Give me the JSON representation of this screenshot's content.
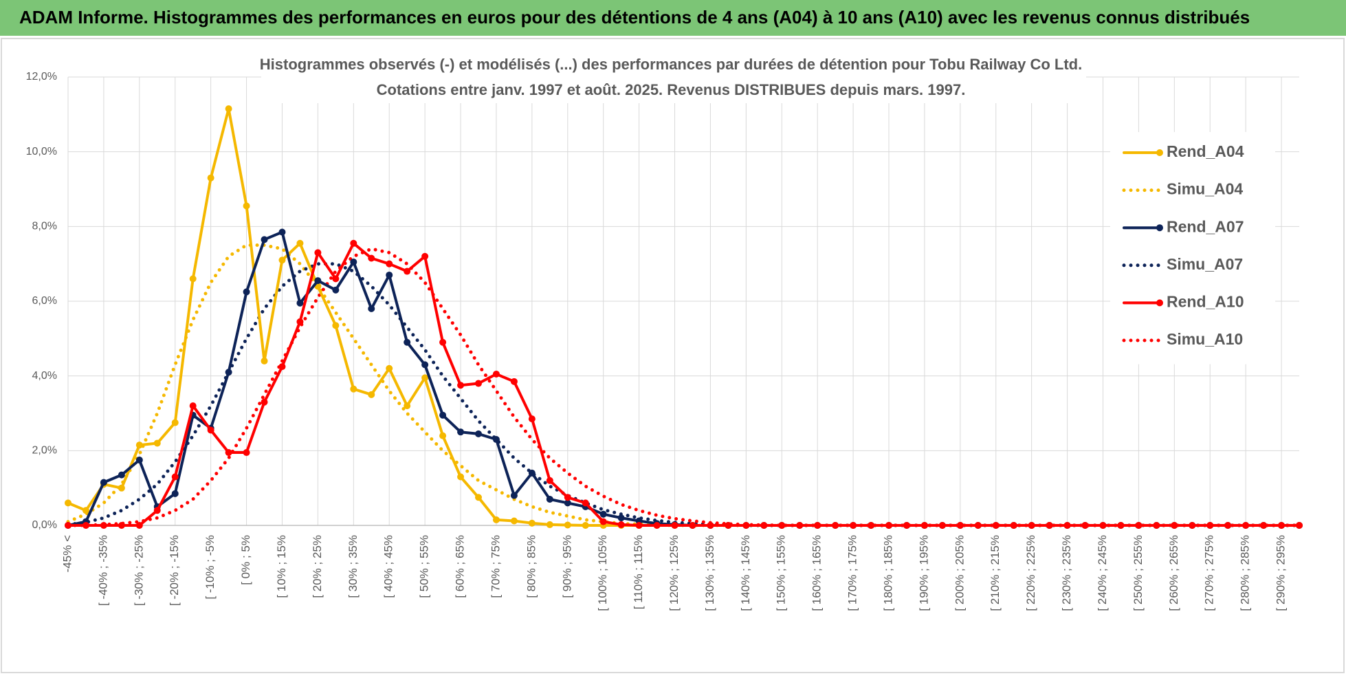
{
  "header": {
    "title": "ADAM Informe. Histogrammes des performances en euros pour des détentions de 4 ans (A04) à 10 ans (A10) avec les revenus connus distribués"
  },
  "chart_data": {
    "type": "line",
    "title": "Histogrammes observés (-) et modélisés (...) des performances par durées de détention pour Tobu Railway Co Ltd.",
    "subtitle": "Cotations entre janv. 1997 et août. 2025. Revenus DISTRIBUES depuis mars. 1997.",
    "categories": [
      "-45% <",
      null,
      "[ -40% ; -35%",
      null,
      "[ -30% ; -25%",
      null,
      "[ -20% ; -15%",
      null,
      "[ -10% ; -5%",
      null,
      "[ 0% ; 5%",
      null,
      "[ 10% ; 15%",
      null,
      "[ 20% ; 25%",
      null,
      "[ 30% ; 35%",
      null,
      "[ 40% ; 45%",
      null,
      "[ 50% ; 55%",
      null,
      "[ 60% ; 65%",
      null,
      "[ 70% ; 75%",
      null,
      "[ 80% ; 85%",
      null,
      "[ 90% ; 95%",
      null,
      "[ 100% ; 105%",
      null,
      "[ 110% ; 115%",
      null,
      "[ 120% ; 125%",
      null,
      "[ 130% ; 135%",
      null,
      "[ 140% ; 145%",
      null,
      "[ 150% ; 155%",
      null,
      "[ 160% ; 165%",
      null,
      "[ 170% ; 175%",
      null,
      "[ 180% ; 185%",
      null,
      "[ 190% ; 195%",
      null,
      "[ 200% ; 205%",
      null,
      "[ 210% ; 215%",
      null,
      "[ 220% ; 225%",
      null,
      "[ 230% ; 235%",
      null,
      "[ 240% ; 245%",
      null,
      "[ 250% ; 255%",
      null,
      "[ 260% ; 265%",
      null,
      "[ 270% ; 275%",
      null,
      "[ 280% ; 285%",
      null,
      "[ 290% ; 295%",
      null
    ],
    "series": [
      {
        "name": "Rend_A04",
        "color": "#f5b800",
        "dash": "solid",
        "markers": true,
        "values": [
          0.6,
          0.4,
          1.1,
          1.0,
          2.15,
          2.2,
          2.75,
          6.6,
          9.3,
          11.15,
          8.55,
          4.4,
          7.1,
          7.55,
          6.4,
          5.35,
          3.65,
          3.5,
          4.2,
          3.2,
          3.95,
          2.4,
          1.3,
          0.75,
          0.15,
          0.12,
          0.06,
          0.02,
          0.01,
          0,
          0,
          0,
          0,
          0,
          0,
          0,
          0,
          0,
          0,
          0,
          0,
          0,
          0,
          0,
          0,
          0,
          0,
          0,
          0,
          0,
          0,
          0,
          0,
          0,
          0,
          0,
          0,
          0,
          0,
          0,
          0,
          0,
          0,
          0,
          0,
          0,
          0,
          0,
          0,
          0
        ]
      },
      {
        "name": "Simu_A04",
        "color": "#f5b800",
        "dash": "dotted",
        "markers": false,
        "values": [
          0.1,
          0.3,
          0.6,
          1.1,
          1.9,
          3.0,
          4.3,
          5.5,
          6.5,
          7.2,
          7.5,
          7.5,
          7.4,
          7.0,
          6.4,
          5.7,
          5.0,
          4.3,
          3.6,
          3.0,
          2.5,
          2.0,
          1.6,
          1.2,
          0.95,
          0.7,
          0.5,
          0.35,
          0.25,
          0.15,
          0.1,
          0.05,
          0.03,
          0.01,
          0,
          0,
          0,
          0,
          0,
          0,
          0,
          0,
          0,
          0,
          0,
          0,
          0,
          0,
          0,
          0,
          0,
          0,
          0,
          0,
          0,
          0,
          0,
          0,
          0,
          0,
          0,
          0,
          0,
          0,
          0,
          0,
          0,
          0,
          0,
          0
        ]
      },
      {
        "name": "Rend_A07",
        "color": "#0d2358",
        "dash": "solid",
        "markers": true,
        "values": [
          0,
          0.1,
          1.15,
          1.35,
          1.75,
          0.5,
          0.85,
          2.95,
          2.6,
          4.1,
          6.25,
          7.65,
          7.85,
          5.95,
          6.55,
          6.3,
          7.05,
          5.8,
          6.7,
          4.9,
          4.3,
          2.95,
          2.5,
          2.45,
          2.3,
          0.8,
          1.4,
          0.7,
          0.6,
          0.5,
          0.3,
          0.2,
          0.12,
          0.05,
          0.02,
          0,
          0,
          0,
          0,
          0,
          0,
          0,
          0,
          0,
          0,
          0,
          0,
          0,
          0,
          0,
          0,
          0,
          0,
          0,
          0,
          0,
          0,
          0,
          0,
          0,
          0,
          0,
          0,
          0,
          0,
          0,
          0,
          0,
          0,
          0
        ]
      },
      {
        "name": "Simu_A07",
        "color": "#0d2358",
        "dash": "dotted",
        "markers": false,
        "values": [
          0.02,
          0.08,
          0.2,
          0.4,
          0.7,
          1.1,
          1.7,
          2.4,
          3.2,
          4.1,
          5.0,
          5.8,
          6.4,
          6.8,
          7.0,
          7.0,
          6.8,
          6.4,
          5.9,
          5.3,
          4.7,
          4.0,
          3.4,
          2.8,
          2.3,
          1.8,
          1.4,
          1.05,
          0.8,
          0.6,
          0.42,
          0.3,
          0.2,
          0.13,
          0.08,
          0.05,
          0.03,
          0.01,
          0,
          0,
          0,
          0,
          0,
          0,
          0,
          0,
          0,
          0,
          0,
          0,
          0,
          0,
          0,
          0,
          0,
          0,
          0,
          0,
          0,
          0,
          0,
          0,
          0,
          0,
          0,
          0,
          0,
          0,
          0,
          0
        ]
      },
      {
        "name": "Rend_A10",
        "color": "#ff0000",
        "dash": "solid",
        "markers": true,
        "values": [
          0,
          0,
          0,
          0,
          0,
          0.4,
          1.3,
          3.2,
          2.55,
          1.95,
          1.95,
          3.3,
          4.25,
          5.45,
          7.3,
          6.6,
          7.55,
          7.15,
          7.0,
          6.8,
          7.2,
          4.9,
          3.75,
          3.8,
          4.05,
          3.85,
          2.85,
          1.2,
          0.75,
          0.6,
          0.1,
          0.02,
          0,
          0,
          0,
          0,
          0,
          0,
          0,
          0,
          0,
          0,
          0,
          0,
          0,
          0,
          0,
          0,
          0,
          0,
          0,
          0,
          0,
          0,
          0,
          0,
          0,
          0,
          0,
          0,
          0,
          0,
          0,
          0,
          0,
          0,
          0,
          0,
          0,
          0
        ]
      },
      {
        "name": "Simu_A10",
        "color": "#ff0000",
        "dash": "dotted",
        "markers": false,
        "values": [
          0,
          0,
          0.02,
          0.05,
          0.1,
          0.2,
          0.4,
          0.7,
          1.2,
          1.8,
          2.6,
          3.5,
          4.4,
          5.3,
          6.1,
          6.8,
          7.2,
          7.4,
          7.3,
          7.0,
          6.5,
          5.8,
          5.1,
          4.3,
          3.6,
          2.9,
          2.3,
          1.8,
          1.4,
          1.05,
          0.78,
          0.56,
          0.4,
          0.27,
          0.18,
          0.12,
          0.07,
          0.04,
          0.02,
          0.01,
          0,
          0,
          0,
          0,
          0,
          0,
          0,
          0,
          0,
          0,
          0,
          0,
          0,
          0,
          0,
          0,
          0,
          0,
          0,
          0,
          0,
          0,
          0,
          0,
          0,
          0,
          0,
          0,
          0,
          0
        ]
      }
    ],
    "ylim": [
      0,
      12
    ],
    "yticks": [
      {
        "value": 0,
        "label": "0,0%"
      },
      {
        "value": 2,
        "label": "2,0%"
      },
      {
        "value": 4,
        "label": "4,0%"
      },
      {
        "value": 6,
        "label": "6,0%"
      },
      {
        "value": 8,
        "label": "8,0%"
      },
      {
        "value": 10,
        "label": "10,0%"
      },
      {
        "value": 12,
        "label": "12,0%"
      }
    ],
    "grid": true,
    "legend": "right"
  }
}
